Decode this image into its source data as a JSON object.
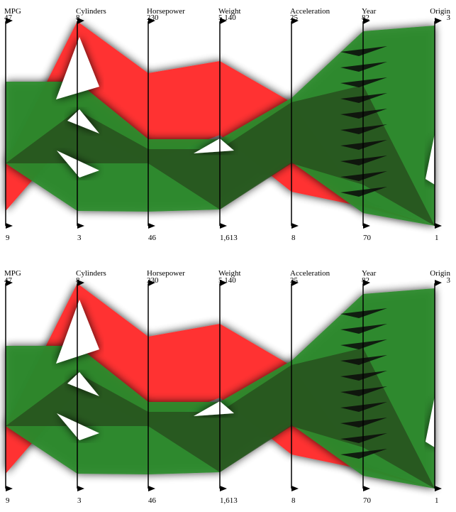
{
  "chart_data": [
    {
      "type": "parallel-coordinates",
      "title": "",
      "axes": [
        {
          "name": "MPG",
          "min": "9",
          "max": "47"
        },
        {
          "name": "Cylinders",
          "min": "3",
          "max": "8"
        },
        {
          "name": "Horsepower",
          "min": "46",
          "max": "230"
        },
        {
          "name": "Weight",
          "min": "1,613",
          "max": "5,140"
        },
        {
          "name": "Acceleration",
          "min": "8",
          "max": "25"
        },
        {
          "name": "Year",
          "min": "70",
          "max": "82"
        },
        {
          "name": "Origin",
          "min": "1",
          "max": "3"
        }
      ],
      "series": [
        {
          "color": "#ff3333",
          "upper": [
            0.2,
            1.0,
            0.4,
            0.5,
            0.2,
            0.1,
            0.0
          ],
          "lower": [
            -0.1,
            0.2,
            0.0,
            0.0,
            -0.2,
            -0.3,
            -0.4
          ]
        },
        {
          "color": "#2e8b2e",
          "upper": [
            0.6,
            0.6,
            0.2,
            0.35,
            0.3,
            1.0,
            1.0
          ],
          "lower": [
            0.0,
            0.0,
            0.0,
            0.0,
            -0.2,
            -0.3,
            -0.4
          ]
        }
      ]
    },
    {
      "type": "parallel-coordinates",
      "title": "",
      "axes": [
        {
          "name": "MPG",
          "min": "9",
          "max": "47"
        },
        {
          "name": "Cylinders",
          "min": "3",
          "max": "8"
        },
        {
          "name": "Horsepower",
          "min": "46",
          "max": "230"
        },
        {
          "name": "Weight",
          "min": "1,613",
          "max": "5,140"
        },
        {
          "name": "Acceleration",
          "min": "8",
          "max": "25"
        },
        {
          "name": "Year",
          "min": "70",
          "max": "82"
        },
        {
          "name": "Origin",
          "min": "1",
          "max": "3"
        }
      ],
      "series": [
        {
          "color": "#ff3333",
          "upper": [
            0.2,
            1.0,
            0.4,
            0.5,
            0.2,
            0.1,
            0.0
          ],
          "lower": [
            -0.1,
            0.2,
            0.0,
            0.0,
            -0.2,
            -0.3,
            -0.4
          ]
        },
        {
          "color": "#2e8b2e",
          "upper": [
            0.6,
            0.6,
            0.2,
            0.35,
            0.3,
            1.0,
            1.0
          ],
          "lower": [
            0.0,
            0.0,
            0.0,
            0.0,
            -0.2,
            -0.3,
            -0.4
          ]
        }
      ]
    }
  ]
}
